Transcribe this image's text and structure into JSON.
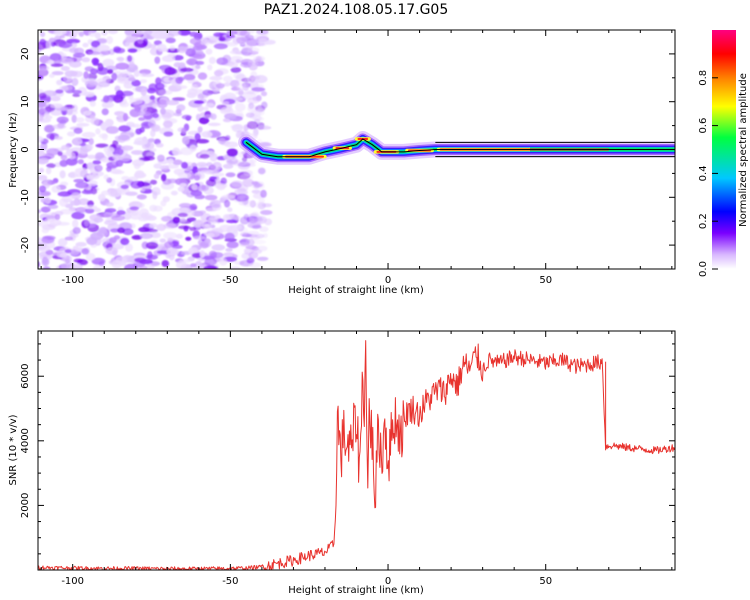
{
  "title": "PAZ1.2024.108.05.17.G05",
  "chart_data": [
    {
      "type": "heatmap",
      "xlabel": "Height of straight line (km)",
      "ylabel": "Frequency (Hz)",
      "xlim": [
        -111,
        91
      ],
      "ylim": [
        -25,
        25
      ],
      "xticks": [
        -100,
        -50,
        0,
        50
      ],
      "yticks": [
        20,
        10,
        0,
        -10,
        -20
      ],
      "colorbar": {
        "label": "Normalized spectral amplitude",
        "range": [
          0,
          1
        ],
        "ticks": [
          0.0,
          0.2,
          0.4,
          0.6,
          0.8
        ],
        "colormap": "gist_rainbow_r",
        "colors": [
          "#ffffff",
          "#d9b8ff",
          "#7a00ff",
          "#0000ff",
          "#00c8ff",
          "#00ff40",
          "#ffff00",
          "#ff8000",
          "#ff0000",
          "#ff0080"
        ]
      },
      "ridge": [
        {
          "x": -45,
          "y": 1.5
        },
        {
          "x": -40,
          "y": -1.0
        },
        {
          "x": -35,
          "y": -1.5
        },
        {
          "x": -30,
          "y": -1.5
        },
        {
          "x": -25,
          "y": -1.5
        },
        {
          "x": -20,
          "y": -0.5
        },
        {
          "x": -15,
          "y": 0.2
        },
        {
          "x": -10,
          "y": 1.0
        },
        {
          "x": -8,
          "y": 2.2
        },
        {
          "x": -5,
          "y": 1.0
        },
        {
          "x": -2,
          "y": -0.5
        },
        {
          "x": 0,
          "y": -0.5
        },
        {
          "x": 5,
          "y": -0.5
        },
        {
          "x": 10,
          "y": -0.2
        },
        {
          "x": 15,
          "y": 0.0
        },
        {
          "x": 30,
          "y": 0.0
        },
        {
          "x": 60,
          "y": 0.0
        },
        {
          "x": 91,
          "y": 0.0
        }
      ]
    },
    {
      "type": "line",
      "xlabel": "Height of straight line (km)",
      "ylabel": "SNR (10 * v/v)",
      "xlim": [
        -111,
        91
      ],
      "ylim": [
        0,
        7400
      ],
      "xticks": [
        -100,
        -50,
        0,
        50
      ],
      "yticks": [
        2000,
        4000,
        6000
      ],
      "color": "#e8332e",
      "series": [
        {
          "x": [
            -111,
            -100,
            -90,
            -80,
            -70,
            -60,
            -50,
            -45,
            -40,
            -35,
            -30,
            -25,
            -20,
            -18,
            -17,
            -16,
            -15,
            -14,
            -12,
            -10,
            -9,
            -8,
            -7.5,
            -7,
            -6.5,
            -6,
            -5,
            -4,
            -3,
            -2,
            -1,
            0,
            2,
            4,
            6,
            8,
            10,
            12,
            14,
            16,
            18,
            20,
            22,
            24,
            26,
            28,
            30,
            32,
            35,
            40,
            45,
            50,
            55,
            60,
            65,
            68,
            69,
            70,
            72,
            75,
            80,
            85,
            88,
            91
          ],
          "y": [
            80,
            60,
            50,
            50,
            40,
            40,
            50,
            60,
            100,
            200,
            300,
            450,
            550,
            700,
            900,
            4800,
            3500,
            4200,
            3600,
            4800,
            3000,
            6200,
            5000,
            7300,
            1700,
            5000,
            4000,
            2200,
            4600,
            3200,
            4800,
            3300,
            4800,
            4200,
            4900,
            5000,
            4800,
            5200,
            5400,
            5600,
            5500,
            6000,
            5700,
            6400,
            6200,
            6700,
            6200,
            6500,
            6400,
            6600,
            6500,
            6400,
            6500,
            6300,
            6400,
            6450,
            3800,
            3850,
            3850,
            3800,
            3750,
            3700,
            3750,
            3800
          ]
        }
      ]
    }
  ]
}
